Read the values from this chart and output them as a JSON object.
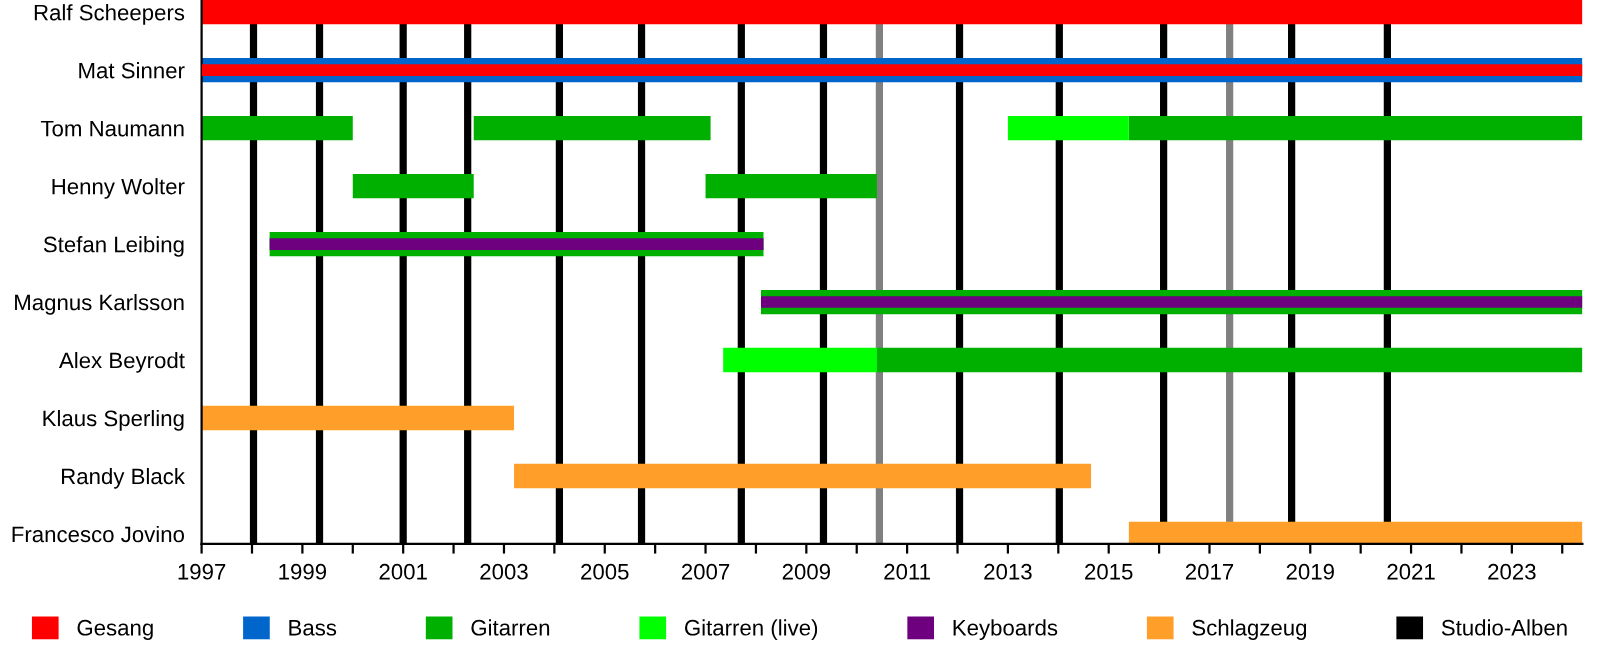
{
  "chart_data": {
    "type": "bar",
    "orientation": "horizontal",
    "categories": [
      "Ralf Scheepers",
      "Mat Sinner",
      "Tom Naumann",
      "Henny Wolter",
      "Stefan Leibing",
      "Magnus Karlsson",
      "Alex Beyrodt",
      "Klaus Sperling",
      "Randy Black",
      "Francesco Jovino"
    ],
    "series": [
      {
        "name": "Gesang",
        "color": "#ff0000",
        "base": [
          1997,
          null,
          null,
          null,
          null,
          null,
          null,
          null,
          null,
          null
        ],
        "values": [
          27.4,
          null,
          null,
          null,
          null,
          null,
          null,
          null,
          null,
          null
        ]
      },
      {
        "name": "Bass",
        "color": "#0066cc",
        "base": [
          null,
          1997,
          null,
          null,
          null,
          null,
          null,
          null,
          null,
          null
        ],
        "values": [
          null,
          27.4,
          null,
          null,
          null,
          null,
          null,
          null,
          null,
          null
        ]
      },
      {
        "color": "#ff0000",
        "base": [
          null,
          1997,
          null,
          null,
          null,
          null,
          null,
          null,
          null,
          null
        ],
        "values": [
          null,
          27.4,
          null,
          null,
          null,
          null,
          null,
          null,
          null,
          null
        ]
      },
      {
        "name": "Gitarren",
        "color": "#00b000",
        "base": [
          null,
          null,
          1997,
          2000.0,
          1998.35,
          2008.1,
          2010.4,
          null,
          null,
          null
        ],
        "values": [
          null,
          null,
          3.0,
          2.4,
          9.8,
          16.3,
          14.0,
          null,
          null,
          null
        ]
      },
      {
        "color": "#00b000",
        "base": [
          null,
          null,
          2002.4,
          2007.0,
          null,
          null,
          null,
          null,
          null,
          null
        ],
        "values": [
          null,
          null,
          4.7,
          3.4,
          null,
          null,
          null,
          null,
          null,
          null
        ]
      },
      {
        "color": "#00b000",
        "base": [
          null,
          null,
          2015.4,
          null,
          null,
          null,
          null,
          null,
          null,
          null
        ],
        "values": [
          null,
          null,
          9.0,
          null,
          null,
          null,
          null,
          null,
          null,
          null
        ]
      },
      {
        "name": "Gitarren (live)",
        "color": "#00ff00",
        "base": [
          null,
          null,
          2013.0,
          null,
          null,
          null,
          2007.35,
          null,
          null,
          null
        ],
        "values": [
          null,
          null,
          2.4,
          null,
          null,
          null,
          3.05,
          null,
          null,
          null
        ]
      },
      {
        "name": "Keyboards",
        "color": "#6e0080",
        "base": [
          null,
          null,
          null,
          null,
          1998.35,
          2008.1,
          null,
          null,
          null,
          null
        ],
        "values": [
          null,
          null,
          null,
          null,
          9.8,
          16.3,
          null,
          null,
          null,
          null
        ]
      },
      {
        "name": "Schlagzeug",
        "color": "#ff9f2a",
        "base": [
          null,
          null,
          null,
          null,
          null,
          null,
          null,
          1997,
          2003.2,
          2015.4
        ],
        "values": [
          null,
          null,
          null,
          null,
          null,
          null,
          null,
          6.2,
          11.45,
          9.0
        ]
      }
    ],
    "ref_lines": [
      {
        "axis": "x",
        "value": 1998.03,
        "color": "#000000",
        "label": "Studio-Alben"
      },
      {
        "axis": "x",
        "value": 1999.34,
        "color": "#000000"
      },
      {
        "axis": "x",
        "value": 2001.0,
        "color": "#000000"
      },
      {
        "axis": "x",
        "value": 2002.28,
        "color": "#000000"
      },
      {
        "axis": "x",
        "value": 2004.1,
        "color": "#000000"
      },
      {
        "axis": "x",
        "value": 2005.73,
        "color": "#000000"
      },
      {
        "axis": "x",
        "value": 2007.71,
        "color": "#000000"
      },
      {
        "axis": "x",
        "value": 2009.34,
        "color": "#000000"
      },
      {
        "axis": "x",
        "value": 2010.45,
        "color": "#808080"
      },
      {
        "axis": "x",
        "value": 2012.04,
        "color": "#000000"
      },
      {
        "axis": "x",
        "value": 2014.02,
        "color": "#000000"
      },
      {
        "axis": "x",
        "value": 2016.09,
        "color": "#000000"
      },
      {
        "axis": "x",
        "value": 2017.4,
        "color": "#808080"
      },
      {
        "axis": "x",
        "value": 2018.63,
        "color": "#000000"
      },
      {
        "axis": "x",
        "value": 2020.53,
        "color": "#000000"
      }
    ],
    "xlim": [
      1997,
      2024.4
    ],
    "xticks": [
      1997,
      {
        "value": 1998,
        "label": null
      },
      1999,
      {
        "value": 2000,
        "label": null
      },
      2001,
      {
        "value": 2002,
        "label": null
      },
      2003,
      {
        "value": 2004,
        "label": null
      },
      2005,
      {
        "value": 2006,
        "label": null
      },
      2007,
      {
        "value": 2008,
        "label": null
      },
      2009,
      {
        "value": 2010,
        "label": null
      },
      2011,
      {
        "value": 2012,
        "label": null
      },
      2013,
      {
        "value": 2014,
        "label": null
      },
      2015,
      {
        "value": 2016,
        "label": null
      },
      2017,
      {
        "value": 2018,
        "label": null
      },
      2019,
      {
        "value": 2020,
        "label": null
      },
      2021,
      {
        "value": 2022,
        "label": null
      },
      2023,
      {
        "value": 2024,
        "label": null
      }
    ],
    "grid": false,
    "legend": "bottom"
  }
}
